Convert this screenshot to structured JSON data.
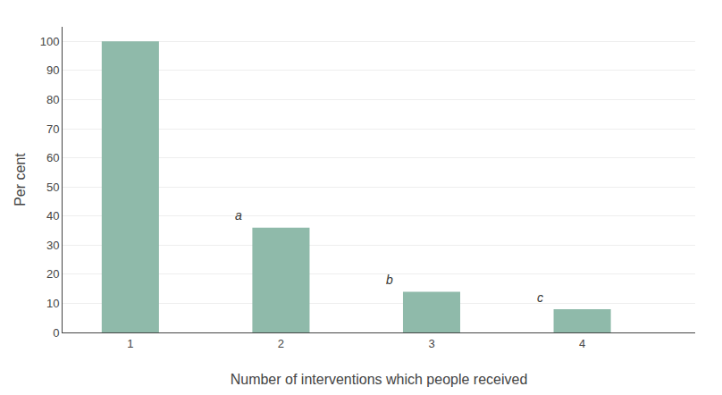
{
  "chart_data": {
    "type": "bar",
    "x": [
      1,
      2,
      3,
      4
    ],
    "values": [
      100,
      36,
      14,
      8
    ],
    "color": "#8fbaaa",
    "xlabel": "Number of interventions which people received",
    "ylabel": "Per cent",
    "xlim": [
      0.55,
      4.75
    ],
    "xticks": [
      1,
      2,
      3,
      4
    ],
    "ylim": [
      0,
      105
    ],
    "yticks": [
      0,
      10,
      20,
      30,
      40,
      50,
      60,
      70,
      80,
      90,
      100
    ],
    "grid": true,
    "annotations": [
      {
        "text": "a",
        "x": 1.72,
        "y": 37
      },
      {
        "text": "b",
        "x": 2.72,
        "y": 15
      },
      {
        "text": "c",
        "x": 3.72,
        "y": 9
      }
    ]
  }
}
